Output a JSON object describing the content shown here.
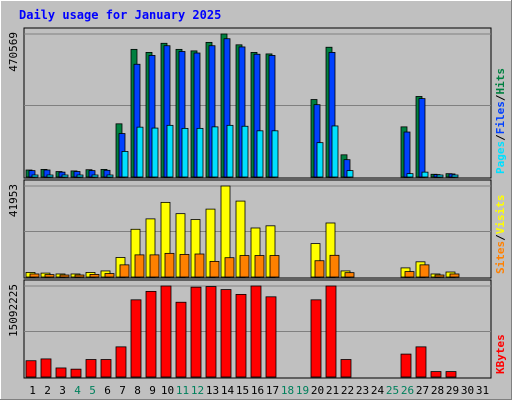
{
  "chart_data": {
    "type": "bar",
    "title": "Daily usage for January 2025",
    "categories": [
      "1",
      "2",
      "3",
      "4",
      "5",
      "6",
      "7",
      "8",
      "9",
      "10",
      "11",
      "12",
      "13",
      "14",
      "15",
      "16",
      "17",
      "18",
      "19",
      "20",
      "21",
      "22",
      "23",
      "24",
      "25",
      "26",
      "27",
      "28",
      "29",
      "30",
      "31"
    ],
    "weekend_days": [
      "4",
      "5",
      "11",
      "12",
      "18",
      "19",
      "25",
      "26"
    ],
    "panels": [
      {
        "id": "requests",
        "ylim": [
          0,
          470569
        ],
        "max_label": "470569",
        "label_parts": [
          "Pages",
          "/",
          "Files",
          "/",
          "Hits"
        ],
        "series": [
          {
            "name": "Hits",
            "color": "#008040",
            "values": [
              23000,
              25000,
              18000,
              20000,
              24000,
              25000,
              175000,
              420000,
              410000,
              440000,
              420000,
              415000,
              443000,
              470569,
              435000,
              410000,
              405000,
              0,
              0,
              255000,
              427000,
              73000,
              0,
              0,
              0,
              165000,
              265000,
              9000,
              11000,
              0,
              0
            ]
          },
          {
            "name": "Files",
            "color": "#0040ff",
            "values": [
              21000,
              23000,
              16000,
              18000,
              21000,
              22000,
              143000,
              371000,
              400000,
              432000,
              413000,
              408000,
              432000,
              455000,
              428000,
              404000,
              400000,
              0,
              0,
              238000,
              410000,
              57000,
              0,
              0,
              0,
              148000,
              258000,
              8000,
              10000,
              0,
              0
            ]
          },
          {
            "name": "Pages",
            "color": "#00e0ff",
            "values": [
              5000,
              4000,
              3000,
              3000,
              4000,
              5000,
              84000,
              164000,
              161000,
              170000,
              160000,
              160000,
              165000,
              170000,
              167000,
              152000,
              152000,
              0,
              0,
              113000,
              168000,
              21000,
              0,
              0,
              0,
              11000,
              16000,
              2000,
              3000,
              0,
              0
            ]
          }
        ]
      },
      {
        "id": "visits",
        "ylim": [
          0,
          41953
        ],
        "max_label": "41953",
        "label_parts": [
          "Sites",
          "/",
          "Visits"
        ],
        "series": [
          {
            "name": "Visits",
            "color": "#ffff00",
            "values": [
              2100,
              1800,
              1400,
              1400,
              2100,
              2800,
              9000,
              22000,
              26800,
              34400,
              29200,
              26500,
              31300,
              41953,
              35000,
              22600,
              23600,
              0,
              0,
              15400,
              24900,
              2800,
              0,
              0,
              0,
              4200,
              7000,
              1400,
              2300,
              0,
              0
            ]
          },
          {
            "name": "Sites",
            "color": "#ff8000",
            "values": [
              1400,
              1100,
              900,
              900,
              1200,
              1600,
              5600,
              10200,
              10200,
              10900,
              10400,
              10600,
              7200,
              8900,
              9900,
              9900,
              9900,
              0,
              0,
              7500,
              10000,
              2000,
              0,
              0,
              0,
              2500,
              5600,
              900,
              1400,
              0,
              0
            ]
          }
        ]
      },
      {
        "id": "kbytes",
        "ylim": [
          0,
          15092225
        ],
        "max_label": "15092225",
        "label_parts": [
          "KBytes"
        ],
        "series": [
          {
            "name": "KBytes",
            "color": "#ff0000",
            "values": [
              2700000,
              3000000,
              1500000,
              1300000,
              2900000,
              2900000,
              5000000,
              12800000,
              14200000,
              15092225,
              12400000,
              14900000,
              15000000,
              14500000,
              13700000,
              15092225,
              13300000,
              0,
              0,
              12800000,
              15092225,
              2900000,
              0,
              0,
              0,
              3800000,
              5000000,
              900000,
              900000,
              0,
              0
            ]
          }
        ]
      }
    ]
  },
  "colors": {
    "frame_bg": "#c0c0c0",
    "title_text": "#0000ff",
    "weekday_label": "#000000",
    "weekend_label": "#00805c",
    "bar_outline": "#000000",
    "separator": "#808080"
  }
}
